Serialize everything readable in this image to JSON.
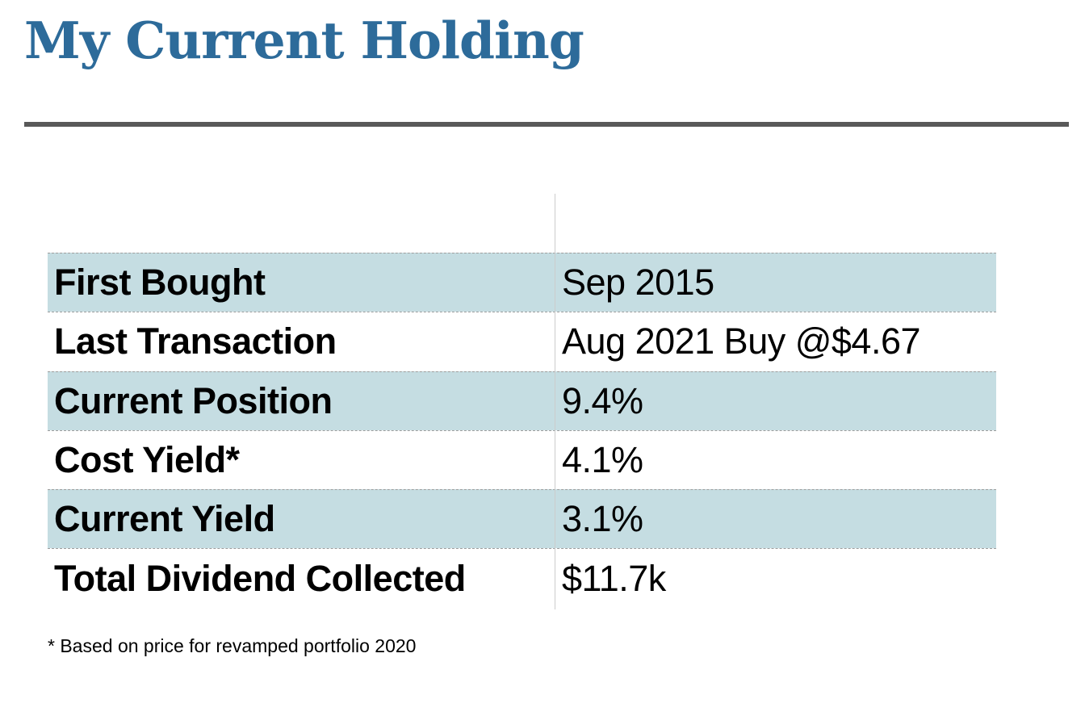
{
  "page": {
    "title": "My Current Holding"
  },
  "table": {
    "rows": [
      {
        "label": "First Bought",
        "value": "Sep 2015"
      },
      {
        "label": "Last Transaction",
        "value": "Aug 2021 Buy @$4.67"
      },
      {
        "label": "Current Position",
        "value": "9.4%"
      },
      {
        "label": "Cost Yield*",
        "value": "4.1%"
      },
      {
        "label": "Current Yield",
        "value": "3.1%"
      },
      {
        "label": "Total Dividend Collected",
        "value": "$11.7k"
      }
    ]
  },
  "footnote": "* Based on price for revamped portfolio 2020",
  "colors": {
    "accent": "#2d6b9a",
    "row-shade": "#c5dde2",
    "rule": "#595959",
    "divider": "#cccccc",
    "dotted": "#9e9e9e"
  }
}
